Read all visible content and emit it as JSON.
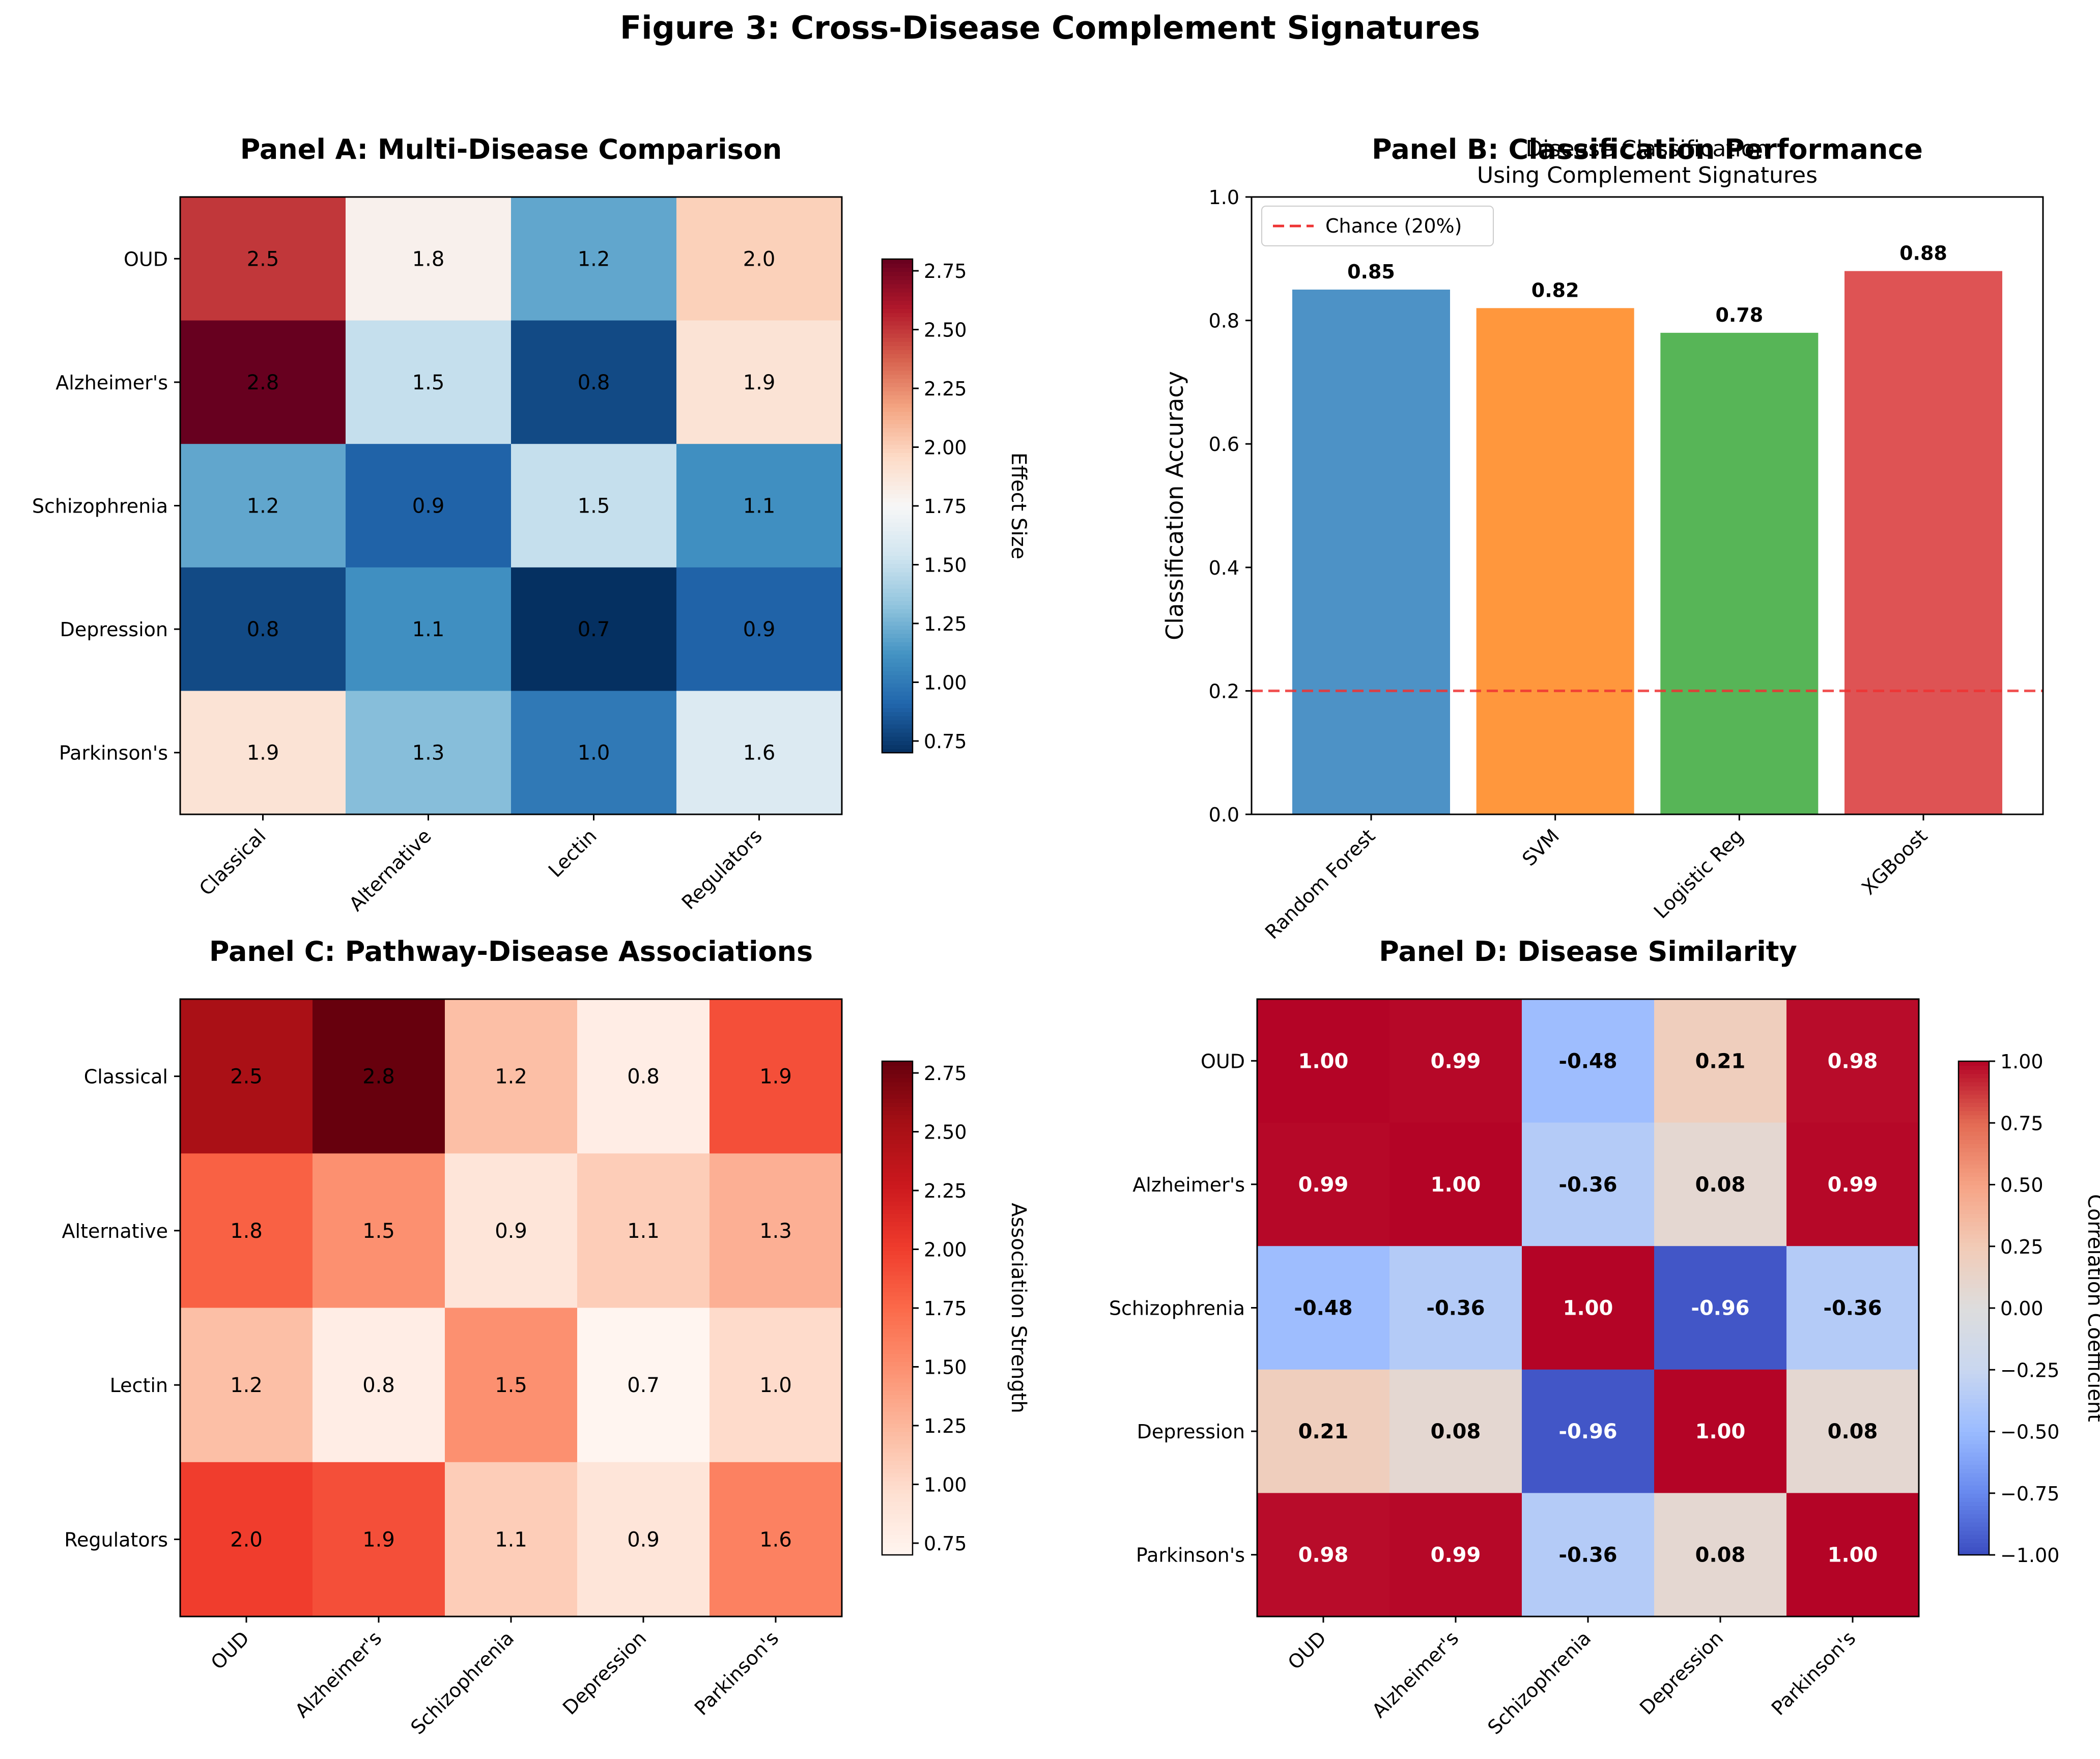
{
  "figure_title": "Figure 3: Cross-Disease Complement Signatures",
  "chart_data": [
    {
      "id": "A",
      "type": "heatmap",
      "title": "Panel A: Multi-Disease Comparison",
      "rows": [
        "OUD",
        "Alzheimer's",
        "Schizophrenia",
        "Depression",
        "Parkinson's"
      ],
      "cols": [
        "Classical",
        "Alternative",
        "Lectin",
        "Regulators"
      ],
      "values": [
        [
          2.5,
          1.8,
          1.2,
          2.0
        ],
        [
          2.8,
          1.5,
          0.8,
          1.9
        ],
        [
          1.2,
          0.9,
          1.5,
          1.1
        ],
        [
          0.8,
          1.1,
          0.7,
          0.9
        ],
        [
          1.9,
          1.3,
          1.0,
          1.6
        ]
      ],
      "value_labels": [
        [
          "2.5",
          "1.8",
          "1.2",
          "2.0"
        ],
        [
          "2.8",
          "1.5",
          "0.8",
          "1.9"
        ],
        [
          "1.2",
          "0.9",
          "1.5",
          "1.1"
        ],
        [
          "0.8",
          "1.1",
          "0.7",
          "0.9"
        ],
        [
          "1.9",
          "1.3",
          "1.0",
          "1.6"
        ]
      ],
      "colormap": "RdBu_r",
      "vmin": 0.7,
      "vmax": 2.8,
      "colorbar_label": "Effect Size",
      "colorbar_ticks": [
        0.75,
        1.0,
        1.25,
        1.5,
        1.75,
        2.0,
        2.25,
        2.5,
        2.75
      ],
      "colorbar_tick_labels": [
        "0.75",
        "1.00",
        "1.25",
        "1.50",
        "1.75",
        "2.00",
        "2.25",
        "2.50",
        "2.75"
      ]
    },
    {
      "id": "B",
      "type": "bar",
      "title": "Panel B: Classification Performance",
      "subtitle_lines": [
        "Disease Classification",
        "Using Complement Signatures"
      ],
      "categories": [
        "Random Forest",
        "SVM",
        "Logistic Reg",
        "XGBoost"
      ],
      "values": [
        0.85,
        0.82,
        0.78,
        0.88
      ],
      "value_labels": [
        "0.85",
        "0.82",
        "0.78",
        "0.88"
      ],
      "colors": [
        "#3a86c0",
        "#ff8c28",
        "#45ad45",
        "#da4041"
      ],
      "ylabel": "Classification Accuracy",
      "ylim": [
        0,
        1.0
      ],
      "yticks": [
        0.0,
        0.2,
        0.4,
        0.6,
        0.8,
        1.0
      ],
      "ytick_labels": [
        "0.0",
        "0.2",
        "0.4",
        "0.6",
        "0.8",
        "1.0"
      ],
      "reference_line": {
        "y": 0.2,
        "label": "Chance (20%)",
        "color": "#ee3333"
      },
      "legend_position": "top-left"
    },
    {
      "id": "C",
      "type": "heatmap",
      "title": "Panel C: Pathway-Disease Associations",
      "rows": [
        "Classical",
        "Alternative",
        "Lectin",
        "Regulators"
      ],
      "cols": [
        "OUD",
        "Alzheimer's",
        "Schizophrenia",
        "Depression",
        "Parkinson's"
      ],
      "values": [
        [
          2.5,
          2.8,
          1.2,
          0.8,
          1.9
        ],
        [
          1.8,
          1.5,
          0.9,
          1.1,
          1.3
        ],
        [
          1.2,
          0.8,
          1.5,
          0.7,
          1.0
        ],
        [
          2.0,
          1.9,
          1.1,
          0.9,
          1.6
        ]
      ],
      "value_labels": [
        [
          "2.5",
          "2.8",
          "1.2",
          "0.8",
          "1.9"
        ],
        [
          "1.8",
          "1.5",
          "0.9",
          "1.1",
          "1.3"
        ],
        [
          "1.2",
          "0.8",
          "1.5",
          "0.7",
          "1.0"
        ],
        [
          "2.0",
          "1.9",
          "1.1",
          "0.9",
          "1.6"
        ]
      ],
      "colormap": "Reds",
      "vmin": 0.7,
      "vmax": 2.8,
      "colorbar_label": "Association Strength",
      "colorbar_ticks": [
        0.75,
        1.0,
        1.25,
        1.5,
        1.75,
        2.0,
        2.25,
        2.5,
        2.75
      ],
      "colorbar_tick_labels": [
        "0.75",
        "1.00",
        "1.25",
        "1.50",
        "1.75",
        "2.00",
        "2.25",
        "2.50",
        "2.75"
      ]
    },
    {
      "id": "D",
      "type": "heatmap",
      "title": "Panel D: Disease Similarity",
      "rows": [
        "OUD",
        "Alzheimer's",
        "Schizophrenia",
        "Depression",
        "Parkinson's"
      ],
      "cols": [
        "OUD",
        "Alzheimer's",
        "Schizophrenia",
        "Depression",
        "Parkinson's"
      ],
      "values": [
        [
          1.0,
          0.99,
          -0.48,
          0.21,
          0.98
        ],
        [
          0.99,
          1.0,
          -0.36,
          0.08,
          0.99
        ],
        [
          -0.48,
          -0.36,
          1.0,
          -0.96,
          -0.36
        ],
        [
          0.21,
          0.08,
          -0.96,
          1.0,
          0.08
        ],
        [
          0.98,
          0.99,
          -0.36,
          0.08,
          1.0
        ]
      ],
      "value_labels": [
        [
          "1.00",
          "0.99",
          "-0.48",
          "0.21",
          "0.98"
        ],
        [
          "0.99",
          "1.00",
          "-0.36",
          "0.08",
          "0.99"
        ],
        [
          "-0.48",
          "-0.36",
          "1.00",
          "-0.96",
          "-0.36"
        ],
        [
          "0.21",
          "0.08",
          "-0.96",
          "1.00",
          "0.08"
        ],
        [
          "0.98",
          "0.99",
          "-0.36",
          "0.08",
          "1.00"
        ]
      ],
      "colormap": "coolwarm",
      "vmin": -1.0,
      "vmax": 1.0,
      "bold_labels": true,
      "colorbar_label": "Correlation Coefficient",
      "colorbar_ticks": [
        -1.0,
        -0.75,
        -0.5,
        -0.25,
        0.0,
        0.25,
        0.5,
        0.75,
        1.0
      ],
      "colorbar_tick_labels": [
        "−1.00",
        "−0.75",
        "−0.50",
        "−0.25",
        "0.00",
        "0.25",
        "0.50",
        "0.75",
        "1.00"
      ]
    }
  ]
}
